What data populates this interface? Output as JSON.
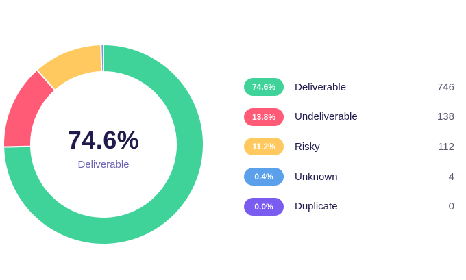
{
  "chart_data": {
    "type": "pie",
    "style": "donut",
    "center_value": "74.6%",
    "center_label": "Deliverable",
    "slices": [
      {
        "label": "Deliverable",
        "percent_label": "74.6%",
        "count": 746,
        "color": "#3fd39a"
      },
      {
        "label": "Undeliverable",
        "percent_label": "13.8%",
        "count": 138,
        "color": "#ff5a76"
      },
      {
        "label": "Risky",
        "percent_label": "11.2%",
        "count": 112,
        "color": "#ffc960"
      },
      {
        "label": "Unknown",
        "percent_label": "0.4%",
        "count": 4,
        "color": "#5aa0ea"
      },
      {
        "label": "Duplicate",
        "percent_label": "0.0%",
        "count": 0,
        "color": "#7a5cf0"
      }
    ]
  }
}
